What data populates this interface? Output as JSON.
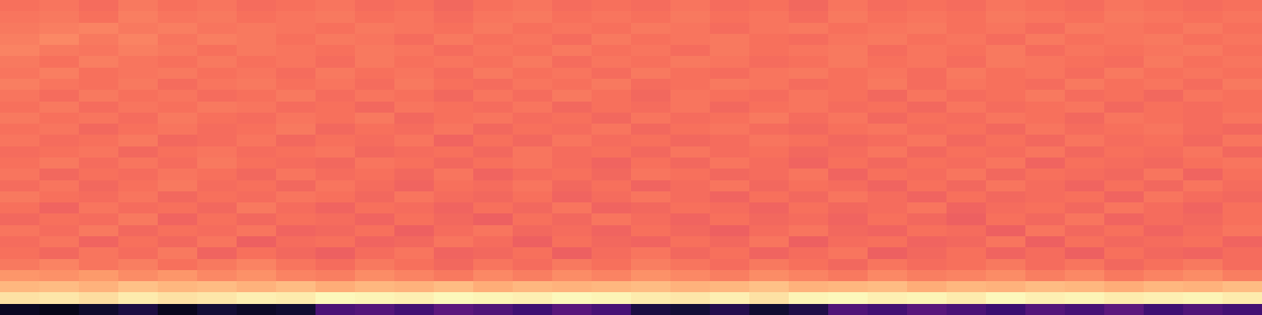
{
  "chart_data": {
    "type": "heatmap",
    "color": "magma",
    "tick_labels": false,
    "zlim": [
      0,
      1
    ],
    "cells": [
      [
        0.06,
        0.04,
        0.08,
        0.12,
        0.05,
        0.1,
        0.07,
        0.09,
        0.24,
        0.26,
        0.22,
        0.28,
        0.25,
        0.21,
        0.27,
        0.23,
        0.12,
        0.1,
        0.14,
        0.09,
        0.13,
        0.25,
        0.22,
        0.27,
        0.24,
        0.2,
        0.26,
        0.23,
        0.28,
        0.21,
        0.25,
        0.22
      ],
      [
        0.94,
        0.95,
        0.93,
        0.96,
        0.94,
        0.95,
        0.97,
        0.96,
        0.99,
        0.98,
        0.97,
        0.99,
        0.98,
        0.97,
        0.99,
        0.98,
        0.96,
        0.95,
        0.97,
        0.94,
        0.98,
        0.99,
        0.97,
        0.98,
        0.96,
        0.99,
        0.97,
        0.98,
        0.96,
        0.97,
        0.98,
        0.96
      ],
      [
        0.85,
        0.86,
        0.84,
        0.87,
        0.85,
        0.86,
        0.84,
        0.86,
        0.83,
        0.85,
        0.84,
        0.86,
        0.83,
        0.85,
        0.84,
        0.85,
        0.86,
        0.84,
        0.85,
        0.87,
        0.84,
        0.85,
        0.86,
        0.83,
        0.85,
        0.84,
        0.86,
        0.85,
        0.83,
        0.85,
        0.84,
        0.86
      ],
      [
        0.78,
        0.77,
        0.79,
        0.76,
        0.78,
        0.75,
        0.77,
        0.74,
        0.73,
        0.76,
        0.74,
        0.72,
        0.75,
        0.73,
        0.76,
        0.74,
        0.77,
        0.75,
        0.73,
        0.76,
        0.74,
        0.72,
        0.75,
        0.73,
        0.74,
        0.76,
        0.73,
        0.75,
        0.72,
        0.74,
        0.76,
        0.73
      ],
      [
        0.72,
        0.74,
        0.71,
        0.73,
        0.7,
        0.72,
        0.74,
        0.71,
        0.69,
        0.72,
        0.7,
        0.68,
        0.71,
        0.69,
        0.72,
        0.7,
        0.73,
        0.71,
        0.69,
        0.72,
        0.7,
        0.68,
        0.71,
        0.69,
        0.7,
        0.72,
        0.69,
        0.71,
        0.68,
        0.7,
        0.72,
        0.69
      ],
      [
        0.7,
        0.68,
        0.71,
        0.69,
        0.72,
        0.67,
        0.7,
        0.68,
        0.66,
        0.69,
        0.71,
        0.67,
        0.68,
        0.7,
        0.66,
        0.69,
        0.71,
        0.68,
        0.7,
        0.67,
        0.69,
        0.71,
        0.66,
        0.68,
        0.7,
        0.67,
        0.69,
        0.66,
        0.7,
        0.68,
        0.67,
        0.69
      ],
      [
        0.69,
        0.71,
        0.67,
        0.7,
        0.68,
        0.71,
        0.66,
        0.69,
        0.7,
        0.67,
        0.68,
        0.71,
        0.69,
        0.66,
        0.7,
        0.68,
        0.67,
        0.7,
        0.68,
        0.71,
        0.66,
        0.69,
        0.7,
        0.67,
        0.68,
        0.71,
        0.66,
        0.7,
        0.68,
        0.69,
        0.7,
        0.67
      ],
      [
        0.71,
        0.69,
        0.72,
        0.68,
        0.7,
        0.69,
        0.71,
        0.67,
        0.68,
        0.7,
        0.66,
        0.69,
        0.71,
        0.68,
        0.69,
        0.67,
        0.7,
        0.68,
        0.66,
        0.69,
        0.71,
        0.68,
        0.67,
        0.7,
        0.69,
        0.66,
        0.71,
        0.68,
        0.7,
        0.67,
        0.69,
        0.71
      ],
      [
        0.68,
        0.7,
        0.69,
        0.72,
        0.67,
        0.7,
        0.68,
        0.7,
        0.69,
        0.67,
        0.7,
        0.68,
        0.66,
        0.7,
        0.68,
        0.71,
        0.69,
        0.67,
        0.7,
        0.68,
        0.69,
        0.67,
        0.7,
        0.68,
        0.66,
        0.7,
        0.68,
        0.71,
        0.67,
        0.69,
        0.68,
        0.7
      ],
      [
        0.7,
        0.67,
        0.71,
        0.69,
        0.7,
        0.68,
        0.72,
        0.69,
        0.67,
        0.7,
        0.69,
        0.67,
        0.7,
        0.68,
        0.71,
        0.67,
        0.68,
        0.7,
        0.69,
        0.67,
        0.7,
        0.68,
        0.69,
        0.71,
        0.67,
        0.69,
        0.7,
        0.68,
        0.71,
        0.69,
        0.67,
        0.7
      ],
      [
        0.72,
        0.7,
        0.69,
        0.71,
        0.68,
        0.7,
        0.69,
        0.71,
        0.7,
        0.68,
        0.71,
        0.69,
        0.68,
        0.7,
        0.67,
        0.69,
        0.71,
        0.69,
        0.67,
        0.7,
        0.68,
        0.71,
        0.69,
        0.67,
        0.7,
        0.68,
        0.69,
        0.7,
        0.67,
        0.71,
        0.69,
        0.68
      ],
      [
        0.69,
        0.71,
        0.68,
        0.7,
        0.72,
        0.69,
        0.7,
        0.68,
        0.71,
        0.69,
        0.67,
        0.7,
        0.69,
        0.71,
        0.68,
        0.7,
        0.67,
        0.69,
        0.71,
        0.68,
        0.7,
        0.69,
        0.67,
        0.7,
        0.68,
        0.71,
        0.69,
        0.67,
        0.7,
        0.68,
        0.71,
        0.69
      ],
      [
        0.71,
        0.68,
        0.7,
        0.69,
        0.71,
        0.7,
        0.68,
        0.71,
        0.69,
        0.7,
        0.68,
        0.71,
        0.67,
        0.69,
        0.7,
        0.68,
        0.71,
        0.7,
        0.68,
        0.69,
        0.71,
        0.67,
        0.7,
        0.69,
        0.71,
        0.68,
        0.7,
        0.69,
        0.68,
        0.71,
        0.67,
        0.7
      ],
      [
        0.7,
        0.72,
        0.69,
        0.71,
        0.69,
        0.72,
        0.7,
        0.69,
        0.68,
        0.71,
        0.7,
        0.68,
        0.7,
        0.71,
        0.69,
        0.67,
        0.7,
        0.68,
        0.71,
        0.69,
        0.67,
        0.7,
        0.68,
        0.7,
        0.69,
        0.71,
        0.67,
        0.7,
        0.69,
        0.68,
        0.7,
        0.71
      ],
      [
        0.69,
        0.7,
        0.71,
        0.68,
        0.7,
        0.71,
        0.69,
        0.7,
        0.71,
        0.68,
        0.69,
        0.7,
        0.68,
        0.71,
        0.69,
        0.7,
        0.68,
        0.71,
        0.69,
        0.7,
        0.68,
        0.69,
        0.71,
        0.68,
        0.7,
        0.69,
        0.71,
        0.68,
        0.7,
        0.69,
        0.71,
        0.68
      ],
      [
        0.71,
        0.69,
        0.7,
        0.72,
        0.68,
        0.69,
        0.71,
        0.68,
        0.7,
        0.69,
        0.71,
        0.67,
        0.7,
        0.68,
        0.71,
        0.69,
        0.7,
        0.68,
        0.69,
        0.71,
        0.7,
        0.68,
        0.69,
        0.71,
        0.68,
        0.7,
        0.68,
        0.71,
        0.69,
        0.7,
        0.68,
        0.71
      ],
      [
        0.7,
        0.71,
        0.68,
        0.7,
        0.71,
        0.69,
        0.7,
        0.72,
        0.68,
        0.7,
        0.69,
        0.71,
        0.68,
        0.7,
        0.69,
        0.71,
        0.68,
        0.7,
        0.71,
        0.69,
        0.68,
        0.7,
        0.71,
        0.69,
        0.7,
        0.68,
        0.71,
        0.69,
        0.7,
        0.71,
        0.69,
        0.68
      ],
      [
        0.72,
        0.7,
        0.71,
        0.69,
        0.72,
        0.7,
        0.69,
        0.71,
        0.7,
        0.72,
        0.68,
        0.7,
        0.71,
        0.69,
        0.7,
        0.68,
        0.71,
        0.69,
        0.7,
        0.72,
        0.69,
        0.71,
        0.68,
        0.7,
        0.69,
        0.71,
        0.7,
        0.68,
        0.71,
        0.7,
        0.69,
        0.71
      ],
      [
        0.7,
        0.72,
        0.69,
        0.71,
        0.7,
        0.72,
        0.71,
        0.69,
        0.7,
        0.68,
        0.71,
        0.7,
        0.69,
        0.71,
        0.68,
        0.7,
        0.69,
        0.71,
        0.68,
        0.7,
        0.71,
        0.69,
        0.7,
        0.68,
        0.71,
        0.69,
        0.7,
        0.71,
        0.68,
        0.7,
        0.69,
        0.7
      ],
      [
        0.71,
        0.69,
        0.72,
        0.7,
        0.71,
        0.69,
        0.7,
        0.72,
        0.69,
        0.71,
        0.7,
        0.68,
        0.71,
        0.69,
        0.72,
        0.7,
        0.68,
        0.71,
        0.7,
        0.69,
        0.71,
        0.7,
        0.68,
        0.71,
        0.69,
        0.7,
        0.72,
        0.69,
        0.7,
        0.68,
        0.71,
        0.7
      ],
      [
        0.73,
        0.71,
        0.7,
        0.72,
        0.69,
        0.71,
        0.72,
        0.7,
        0.71,
        0.69,
        0.72,
        0.7,
        0.69,
        0.71,
        0.7,
        0.72,
        0.69,
        0.7,
        0.72,
        0.71,
        0.69,
        0.7,
        0.72,
        0.69,
        0.71,
        0.7,
        0.69,
        0.72,
        0.7,
        0.71,
        0.69,
        0.72
      ],
      [
        0.71,
        0.73,
        0.7,
        0.71,
        0.72,
        0.7,
        0.71,
        0.69,
        0.72,
        0.7,
        0.71,
        0.69,
        0.72,
        0.7,
        0.71,
        0.69,
        0.72,
        0.7,
        0.69,
        0.71,
        0.72,
        0.7,
        0.71,
        0.69,
        0.72,
        0.7,
        0.71,
        0.69,
        0.72,
        0.7,
        0.71,
        0.7
      ],
      [
        0.72,
        0.7,
        0.73,
        0.71,
        0.7,
        0.72,
        0.7,
        0.71,
        0.69,
        0.72,
        0.7,
        0.71,
        0.7,
        0.72,
        0.69,
        0.71,
        0.7,
        0.72,
        0.71,
        0.69,
        0.7,
        0.72,
        0.7,
        0.71,
        0.69,
        0.72,
        0.71,
        0.7,
        0.69,
        0.72,
        0.7,
        0.71
      ],
      [
        0.74,
        0.72,
        0.71,
        0.73,
        0.72,
        0.7,
        0.72,
        0.71,
        0.7,
        0.72,
        0.71,
        0.69,
        0.71,
        0.7,
        0.72,
        0.7,
        0.71,
        0.69,
        0.72,
        0.7,
        0.71,
        0.72,
        0.69,
        0.71,
        0.7,
        0.72,
        0.69,
        0.71,
        0.7,
        0.71,
        0.72,
        0.7
      ],
      [
        0.73,
        0.75,
        0.72,
        0.74,
        0.71,
        0.73,
        0.72,
        0.7,
        0.72,
        0.71,
        0.69,
        0.72,
        0.7,
        0.71,
        0.69,
        0.72,
        0.7,
        0.71,
        0.72,
        0.7,
        0.69,
        0.71,
        0.72,
        0.7,
        0.71,
        0.69,
        0.72,
        0.7,
        0.71,
        0.72,
        0.7,
        0.71
      ],
      [
        0.72,
        0.73,
        0.74,
        0.72,
        0.73,
        0.71,
        0.72,
        0.71,
        0.7,
        0.72,
        0.71,
        0.7,
        0.72,
        0.7,
        0.71,
        0.7,
        0.72,
        0.71,
        0.69,
        0.71,
        0.72,
        0.7,
        0.71,
        0.72,
        0.7,
        0.71,
        0.69,
        0.72,
        0.71,
        0.7,
        0.72,
        0.7
      ],
      [
        0.71,
        0.72,
        0.7,
        0.73,
        0.71,
        0.72,
        0.7,
        0.71,
        0.72,
        0.7,
        0.71,
        0.69,
        0.71,
        0.72,
        0.7,
        0.71,
        0.7,
        0.72,
        0.7,
        0.71,
        0.69,
        0.72,
        0.7,
        0.71,
        0.7,
        0.72,
        0.71,
        0.7,
        0.72,
        0.71,
        0.7,
        0.71
      ],
      [
        0.7,
        0.71,
        0.69,
        0.72,
        0.7,
        0.71,
        0.69,
        0.7,
        0.71,
        0.69,
        0.7,
        0.68,
        0.7,
        0.71,
        0.69,
        0.7,
        0.69,
        0.71,
        0.69,
        0.7,
        0.68,
        0.71,
        0.69,
        0.7,
        0.69,
        0.71,
        0.7,
        0.69,
        0.71,
        0.7,
        0.69,
        0.7
      ]
    ]
  }
}
